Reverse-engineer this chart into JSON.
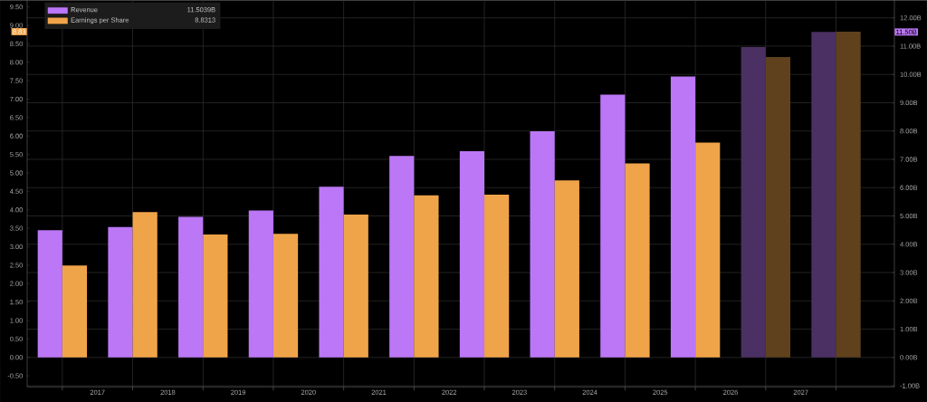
{
  "chart_data": {
    "type": "bar",
    "x": [
      2017,
      2018,
      2019,
      2020,
      2021,
      2022,
      2023,
      2024,
      2025,
      2026,
      2027,
      2028
    ],
    "xlim": [
      2016.5,
      2028.83
    ],
    "xticks": [
      {
        "value": 2017,
        "label": null
      },
      {
        "value": 2017.5,
        "label": "2017"
      },
      {
        "value": 2018,
        "label": null
      },
      {
        "value": 2018.5,
        "label": "2018"
      },
      {
        "value": 2019,
        "label": null
      },
      {
        "value": 2019.5,
        "label": "2019"
      },
      {
        "value": 2020,
        "label": null
      },
      {
        "value": 2020.5,
        "label": "2020"
      },
      {
        "value": 2021,
        "label": null
      },
      {
        "value": 2021.5,
        "label": "2021"
      },
      {
        "value": 2022,
        "label": null
      },
      {
        "value": 2022.5,
        "label": "2022"
      },
      {
        "value": 2023,
        "label": null
      },
      {
        "value": 2023.5,
        "label": "2023"
      },
      {
        "value": 2024,
        "label": null
      },
      {
        "value": 2024.5,
        "label": "2024"
      },
      {
        "value": 2025,
        "label": null
      },
      {
        "value": 2025.5,
        "label": "2025"
      },
      {
        "value": 2026,
        "label": null
      },
      {
        "value": 2026.5,
        "label": "2026"
      },
      {
        "value": 2027,
        "label": null
      },
      {
        "value": 2027.5,
        "label": "2027"
      },
      {
        "value": 2028,
        "label": null
      }
    ],
    "ylim": [
      -0.8,
      9.68
    ],
    "yticks": [
      {
        "value": -0.5,
        "label": "-0.50"
      },
      {
        "value": 0,
        "label": "0.00"
      },
      {
        "value": 0.5,
        "label": "0.50"
      },
      {
        "value": 1,
        "label": "1.00"
      },
      {
        "value": 1.5,
        "label": "1.50"
      },
      {
        "value": 2,
        "label": "2.00"
      },
      {
        "value": 2.5,
        "label": "2.50"
      },
      {
        "value": 3,
        "label": "3.00"
      },
      {
        "value": 3.5,
        "label": "3.50"
      },
      {
        "value": 4,
        "label": "4.00"
      },
      {
        "value": 4.5,
        "label": "4.50"
      },
      {
        "value": 5,
        "label": "5.00"
      },
      {
        "value": 5.5,
        "label": "5.50"
      },
      {
        "value": 6,
        "label": "6.00"
      },
      {
        "value": 6.5,
        "label": "6.50"
      },
      {
        "value": 7,
        "label": "7.00"
      },
      {
        "value": 7.5,
        "label": "7.50"
      },
      {
        "value": 8,
        "label": "8.00"
      },
      {
        "value": 8.5,
        "label": "8.50"
      },
      {
        "value": 9,
        "label": "9.00"
      },
      {
        "value": 9.5,
        "label": "9.50"
      }
    ],
    "y2lim": [
      -1.04,
      12.62
    ],
    "y2ticks": [
      {
        "value": -1,
        "label": "-1.00B"
      },
      {
        "value": 0,
        "label": "0.00B"
      },
      {
        "value": 1,
        "label": "1.00B"
      },
      {
        "value": 2,
        "label": "2.00B"
      },
      {
        "value": 3,
        "label": "3.00B"
      },
      {
        "value": 4,
        "label": "4.00B"
      },
      {
        "value": 5,
        "label": "5.00B"
      },
      {
        "value": 6,
        "label": "6.00B"
      },
      {
        "value": 7,
        "label": "7.00B"
      },
      {
        "value": 8,
        "label": "8.00B"
      },
      {
        "value": 9,
        "label": "9.00B"
      },
      {
        "value": 10,
        "label": "10.00B"
      },
      {
        "value": 11,
        "label": "11.00B"
      },
      {
        "value": 12,
        "label": "12.00B"
      }
    ],
    "series": [
      {
        "name": "Revenue",
        "axis": "y2",
        "values": [
          4.5,
          4.61,
          4.97,
          5.19,
          6.03,
          7.12,
          7.29,
          7.99,
          9.29,
          9.93,
          10.97,
          11.5
        ],
        "colors": [
          "#bb77f5",
          "#bb77f5",
          "#bb77f5",
          "#bb77f5",
          "#bb77f5",
          "#bb77f5",
          "#bb77f5",
          "#bb77f5",
          "#bb77f5",
          "#bb77f5",
          "#4b3063",
          "#4b3063"
        ]
      },
      {
        "name": "Earnings per Share",
        "values": [
          2.49,
          3.94,
          3.33,
          3.35,
          3.87,
          4.39,
          4.41,
          4.8,
          5.26,
          5.82,
          8.14,
          8.83
        ],
        "colors": [
          "#f0a44a",
          "#f0a44a",
          "#f0a44a",
          "#f0a44a",
          "#f0a44a",
          "#f0a44a",
          "#f0a44a",
          "#f0a44a",
          "#f0a44a",
          "#f0a44a",
          "#5f421d",
          "#5f421d"
        ]
      }
    ],
    "annotations": [
      "11.5039B",
      "8.8313",
      "8.83",
      "11.50B"
    ],
    "grid": true,
    "legend": "top left"
  }
}
